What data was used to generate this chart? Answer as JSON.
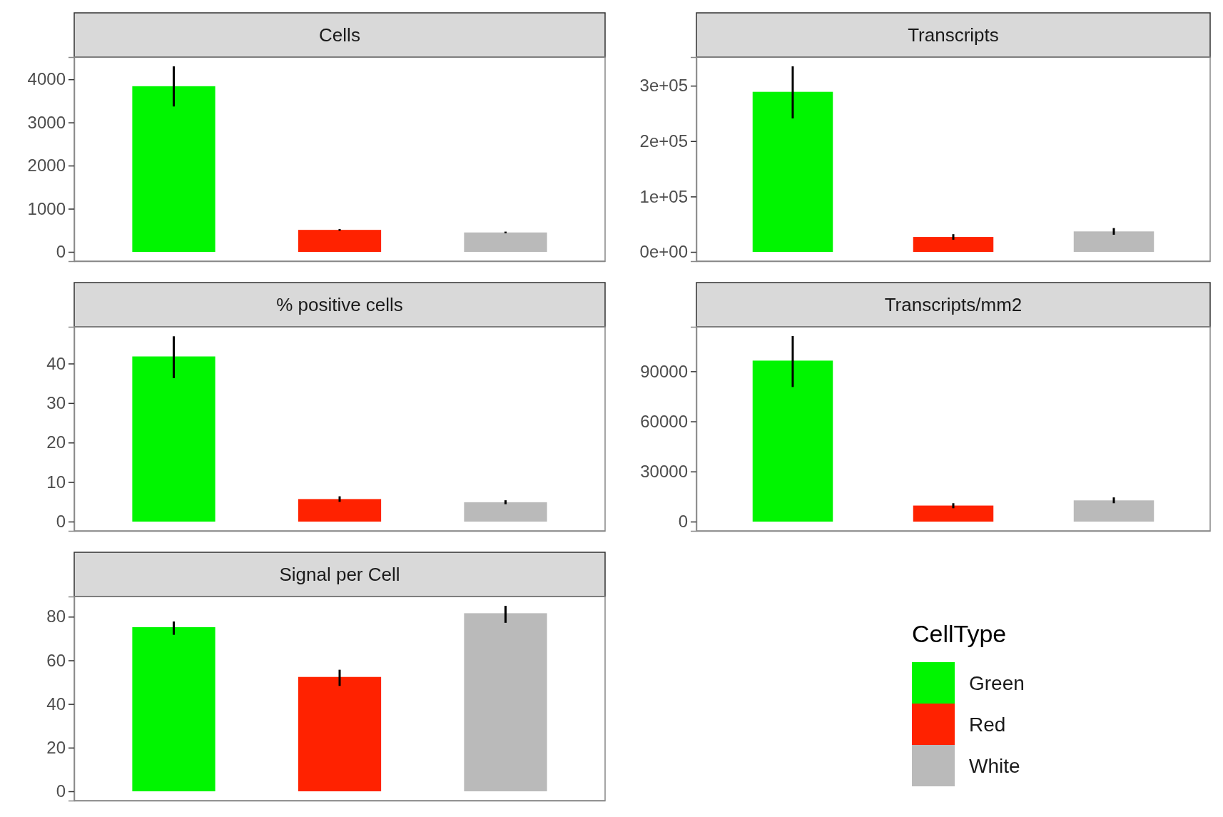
{
  "chart_data": [
    {
      "type": "bar",
      "title": "Cells",
      "categories": [
        null,
        null,
        null
      ],
      "ylim": [
        -215,
        4515
      ],
      "yticks": [
        0,
        1000,
        2000,
        3000,
        4000
      ],
      "tick_labels": "y",
      "series": [
        {
          "color": "#00f500",
          "values": [
            3840,
            null,
            null
          ],
          "errors": [
            [
              3370,
              4300
            ],
            null,
            null
          ]
        },
        {
          "color": "#ff2200",
          "values": [
            null,
            510,
            null
          ],
          "errors": [
            null,
            [
              490,
              530
            ],
            null
          ]
        },
        {
          "color": "#bababa",
          "values": [
            null,
            null,
            450
          ],
          "errors": [
            null,
            null,
            [
              430,
              470
            ]
          ]
        }
      ]
    },
    {
      "type": "bar",
      "title": "Transcripts",
      "categories": [
        null,
        null,
        null
      ],
      "ylim": [
        -16700,
        351700
      ],
      "yticks": [
        {
          "value": 0,
          "label": "0e+00"
        },
        {
          "value": 100000,
          "label": "1e+05"
        },
        {
          "value": 200000,
          "label": "2e+05"
        },
        {
          "value": 300000,
          "label": "3e+05"
        }
      ],
      "tick_labels": "y",
      "series": [
        {
          "color": "#00f500",
          "values": [
            289000,
            null,
            null
          ],
          "errors": [
            [
              241000,
              335000
            ],
            null,
            null
          ]
        },
        {
          "color": "#ff2200",
          "values": [
            null,
            27000,
            null
          ],
          "errors": [
            null,
            [
              22000,
              32000
            ],
            null
          ]
        },
        {
          "color": "#bababa",
          "values": [
            null,
            null,
            37000
          ],
          "errors": [
            null,
            null,
            [
              31000,
              43000
            ]
          ]
        }
      ]
    },
    {
      "type": "bar",
      "title": "% positive cells",
      "categories": [
        null,
        null,
        null
      ],
      "ylim": [
        -2.35,
        49.3
      ],
      "yticks": [
        0,
        10,
        20,
        30,
        40
      ],
      "tick_labels": "y",
      "series": [
        {
          "color": "#00f500",
          "values": [
            41.8,
            null,
            null
          ],
          "errors": [
            [
              36.3,
              46.9
            ],
            null,
            null
          ]
        },
        {
          "color": "#ff2200",
          "values": [
            null,
            5.7,
            null
          ],
          "errors": [
            null,
            [
              5.0,
              6.4
            ],
            null
          ]
        },
        {
          "color": "#bababa",
          "values": [
            null,
            null,
            4.9
          ],
          "errors": [
            null,
            null,
            [
              4.4,
              5.4
            ]
          ]
        }
      ]
    },
    {
      "type": "bar",
      "title": "Transcripts/mm2",
      "categories": [
        null,
        null,
        null
      ],
      "ylim": [
        -5550,
        116650
      ],
      "yticks": [
        0,
        30000,
        60000,
        90000
      ],
      "tick_labels": "y",
      "series": [
        {
          "color": "#00f500",
          "values": [
            96400,
            null,
            null
          ],
          "errors": [
            [
              80600,
              111100
            ],
            null,
            null
          ]
        },
        {
          "color": "#ff2200",
          "values": [
            null,
            9600,
            null
          ],
          "errors": [
            null,
            [
              8000,
              11000
            ],
            null
          ]
        },
        {
          "color": "#bababa",
          "values": [
            null,
            null,
            12700
          ],
          "errors": [
            null,
            null,
            [
              11000,
              14500
            ]
          ]
        }
      ]
    },
    {
      "type": "bar",
      "title": "Signal per Cell",
      "categories": [
        null,
        null,
        null
      ],
      "ylim": [
        -4.25,
        89.25
      ],
      "yticks": [
        0,
        20,
        40,
        60,
        80
      ],
      "tick_labels": "y",
      "legend": "right",
      "legend_title": "CellType",
      "series": [
        {
          "name": "Green",
          "color": "#00f500",
          "values": [
            75.2,
            null,
            null
          ],
          "errors": [
            [
              71.7,
              77.8
            ],
            null,
            null
          ]
        },
        {
          "name": "Red",
          "color": "#ff2200",
          "values": [
            null,
            52.4,
            null
          ],
          "errors": [
            null,
            [
              48.3,
              55.7
            ],
            null
          ]
        },
        {
          "name": "White",
          "color": "#bababa",
          "values": [
            null,
            null,
            81.6
          ],
          "errors": [
            null,
            null,
            [
              77.2,
              85.0
            ]
          ]
        }
      ]
    }
  ]
}
